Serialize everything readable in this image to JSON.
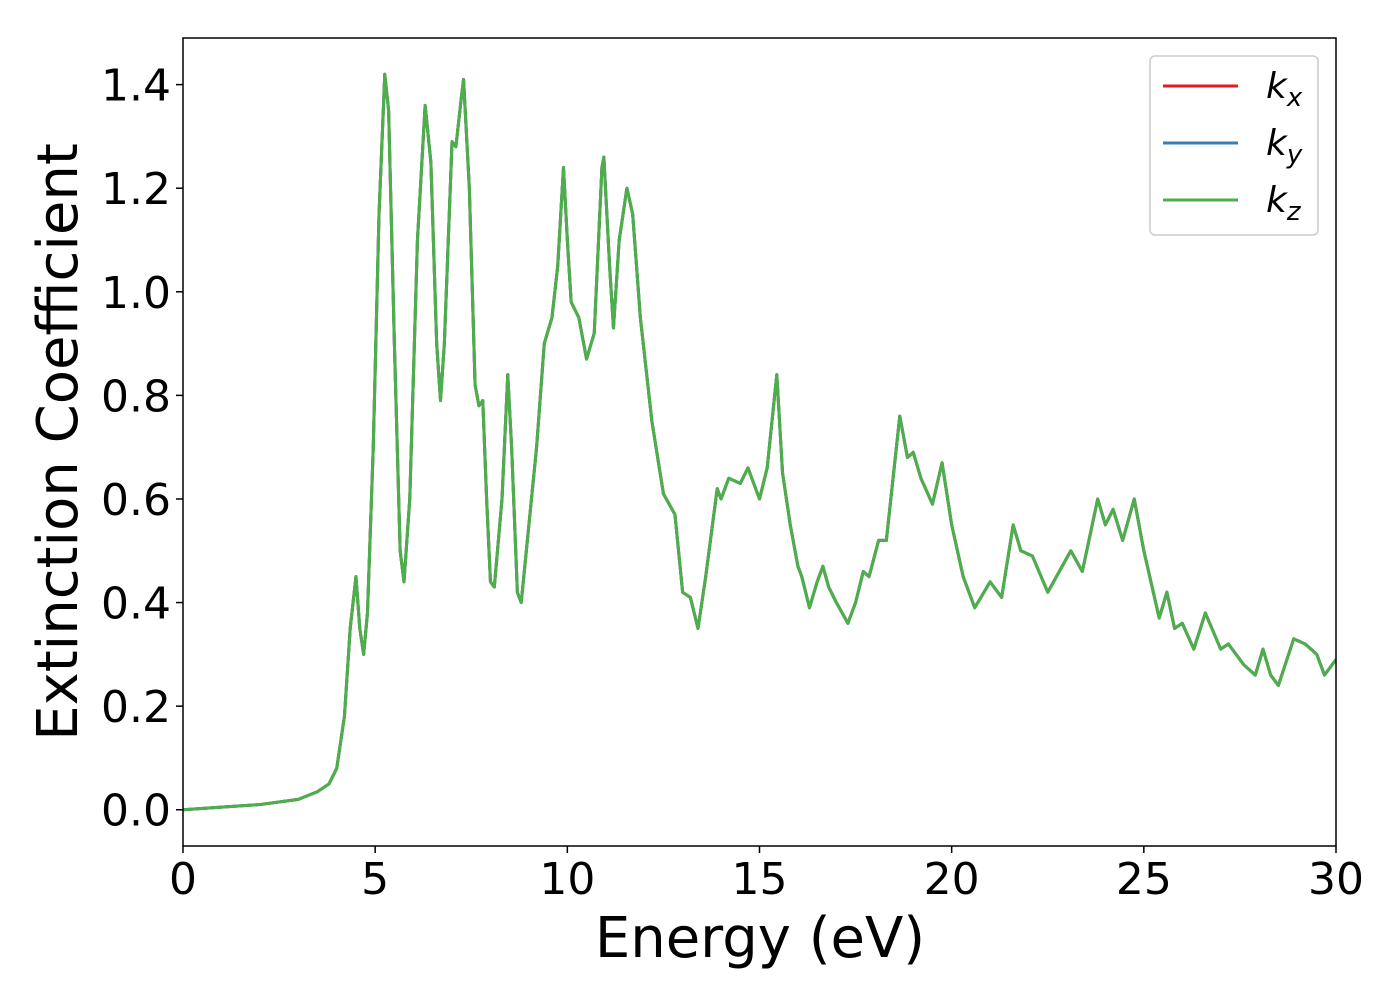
{
  "chart_data": {
    "type": "line",
    "xlabel": "Energy (eV)",
    "ylabel": "Extinction Coefficient",
    "x": [
      0,
      1,
      2,
      3,
      3.5,
      3.8,
      4.0,
      4.2,
      4.35,
      4.5,
      4.6,
      4.7,
      4.8,
      4.95,
      5.1,
      5.25,
      5.35,
      5.5,
      5.65,
      5.75,
      5.9,
      6.1,
      6.3,
      6.45,
      6.6,
      6.7,
      6.8,
      7.0,
      7.1,
      7.25,
      7.3,
      7.45,
      7.6,
      7.7,
      7.8,
      7.9,
      8.0,
      8.1,
      8.3,
      8.45,
      8.55,
      8.7,
      8.8,
      9.0,
      9.2,
      9.4,
      9.6,
      9.75,
      9.9,
      10.0,
      10.1,
      10.3,
      10.5,
      10.7,
      10.9,
      10.95,
      11.1,
      11.2,
      11.35,
      11.55,
      11.7,
      11.9,
      12.2,
      12.5,
      12.8,
      13.0,
      13.2,
      13.4,
      13.6,
      13.9,
      14.0,
      14.2,
      14.5,
      14.7,
      15.0,
      15.2,
      15.45,
      15.6,
      15.8,
      16.0,
      16.1,
      16.3,
      16.5,
      16.65,
      16.8,
      17.0,
      17.3,
      17.5,
      17.7,
      17.85,
      18.1,
      18.3,
      18.65,
      18.85,
      19.0,
      19.2,
      19.5,
      19.75,
      20.0,
      20.3,
      20.6,
      21.0,
      21.3,
      21.6,
      21.8,
      22.1,
      22.5,
      22.8,
      23.1,
      23.4,
      23.8,
      24.0,
      24.2,
      24.45,
      24.75,
      25.0,
      25.4,
      25.6,
      25.8,
      26.0,
      26.3,
      26.6,
      27.0,
      27.2,
      27.6,
      27.9,
      28.1,
      28.3,
      28.5,
      28.9,
      29.2,
      29.5,
      29.7,
      30.0
    ],
    "series": [
      {
        "name": "kx",
        "color": "#e41a1c",
        "values": [
          0,
          0.005,
          0.01,
          0.02,
          0.035,
          0.05,
          0.08,
          0.18,
          0.35,
          0.45,
          0.35,
          0.3,
          0.38,
          0.7,
          1.15,
          1.42,
          1.35,
          0.9,
          0.5,
          0.44,
          0.6,
          1.1,
          1.36,
          1.25,
          0.9,
          0.79,
          0.9,
          1.29,
          1.28,
          1.38,
          1.41,
          1.2,
          0.82,
          0.78,
          0.79,
          0.6,
          0.44,
          0.43,
          0.6,
          0.84,
          0.7,
          0.42,
          0.4,
          0.55,
          0.7,
          0.9,
          0.95,
          1.05,
          1.24,
          1.1,
          0.98,
          0.95,
          0.87,
          0.92,
          1.24,
          1.26,
          1.05,
          0.93,
          1.1,
          1.2,
          1.15,
          0.95,
          0.75,
          0.61,
          0.57,
          0.42,
          0.41,
          0.35,
          0.45,
          0.62,
          0.6,
          0.64,
          0.63,
          0.66,
          0.6,
          0.66,
          0.84,
          0.65,
          0.55,
          0.47,
          0.45,
          0.39,
          0.44,
          0.47,
          0.43,
          0.4,
          0.36,
          0.4,
          0.46,
          0.45,
          0.52,
          0.52,
          0.76,
          0.68,
          0.69,
          0.64,
          0.59,
          0.67,
          0.55,
          0.45,
          0.39,
          0.44,
          0.41,
          0.55,
          0.5,
          0.49,
          0.42,
          0.46,
          0.5,
          0.46,
          0.6,
          0.55,
          0.58,
          0.52,
          0.6,
          0.5,
          0.37,
          0.42,
          0.35,
          0.36,
          0.31,
          0.38,
          0.31,
          0.32,
          0.28,
          0.26,
          0.31,
          0.26,
          0.24,
          0.33,
          0.32,
          0.3,
          0.26,
          0.29
        ]
      },
      {
        "name": "ky",
        "color": "#377eb8",
        "values": [
          0,
          0.005,
          0.01,
          0.02,
          0.035,
          0.05,
          0.08,
          0.18,
          0.35,
          0.45,
          0.35,
          0.3,
          0.38,
          0.7,
          1.15,
          1.42,
          1.35,
          0.9,
          0.5,
          0.44,
          0.6,
          1.1,
          1.36,
          1.25,
          0.9,
          0.79,
          0.9,
          1.29,
          1.28,
          1.38,
          1.41,
          1.2,
          0.82,
          0.78,
          0.79,
          0.6,
          0.44,
          0.43,
          0.6,
          0.84,
          0.7,
          0.42,
          0.4,
          0.55,
          0.7,
          0.9,
          0.95,
          1.05,
          1.24,
          1.1,
          0.98,
          0.95,
          0.87,
          0.92,
          1.24,
          1.26,
          1.05,
          0.93,
          1.1,
          1.2,
          1.15,
          0.95,
          0.75,
          0.61,
          0.57,
          0.42,
          0.41,
          0.35,
          0.45,
          0.62,
          0.6,
          0.64,
          0.63,
          0.66,
          0.6,
          0.66,
          0.84,
          0.65,
          0.55,
          0.47,
          0.45,
          0.39,
          0.44,
          0.47,
          0.43,
          0.4,
          0.36,
          0.4,
          0.46,
          0.45,
          0.52,
          0.52,
          0.76,
          0.68,
          0.69,
          0.64,
          0.59,
          0.67,
          0.55,
          0.45,
          0.39,
          0.44,
          0.41,
          0.55,
          0.5,
          0.49,
          0.42,
          0.46,
          0.5,
          0.46,
          0.6,
          0.55,
          0.58,
          0.52,
          0.6,
          0.5,
          0.37,
          0.42,
          0.35,
          0.36,
          0.31,
          0.38,
          0.31,
          0.32,
          0.28,
          0.26,
          0.31,
          0.26,
          0.24,
          0.33,
          0.32,
          0.3,
          0.26,
          0.29
        ]
      },
      {
        "name": "kz",
        "color": "#4daf4a",
        "values": [
          0,
          0.005,
          0.01,
          0.02,
          0.035,
          0.05,
          0.08,
          0.18,
          0.35,
          0.45,
          0.35,
          0.3,
          0.38,
          0.7,
          1.15,
          1.42,
          1.35,
          0.9,
          0.5,
          0.44,
          0.6,
          1.1,
          1.36,
          1.25,
          0.9,
          0.79,
          0.9,
          1.29,
          1.28,
          1.38,
          1.41,
          1.2,
          0.82,
          0.78,
          0.79,
          0.6,
          0.44,
          0.43,
          0.6,
          0.84,
          0.7,
          0.42,
          0.4,
          0.55,
          0.7,
          0.9,
          0.95,
          1.05,
          1.24,
          1.1,
          0.98,
          0.95,
          0.87,
          0.92,
          1.24,
          1.26,
          1.05,
          0.93,
          1.1,
          1.2,
          1.15,
          0.95,
          0.75,
          0.61,
          0.57,
          0.42,
          0.41,
          0.35,
          0.45,
          0.62,
          0.6,
          0.64,
          0.63,
          0.66,
          0.6,
          0.66,
          0.84,
          0.65,
          0.55,
          0.47,
          0.45,
          0.39,
          0.44,
          0.47,
          0.43,
          0.4,
          0.36,
          0.4,
          0.46,
          0.45,
          0.52,
          0.52,
          0.76,
          0.68,
          0.69,
          0.64,
          0.59,
          0.67,
          0.55,
          0.45,
          0.39,
          0.44,
          0.41,
          0.55,
          0.5,
          0.49,
          0.42,
          0.46,
          0.5,
          0.46,
          0.6,
          0.55,
          0.58,
          0.52,
          0.6,
          0.5,
          0.37,
          0.42,
          0.35,
          0.36,
          0.31,
          0.38,
          0.31,
          0.32,
          0.28,
          0.26,
          0.31,
          0.26,
          0.24,
          0.33,
          0.32,
          0.3,
          0.26,
          0.29
        ]
      }
    ],
    "xlim": [
      0,
      30
    ],
    "xticks": [
      0,
      5,
      10,
      15,
      20,
      25,
      30
    ],
    "ylim": [
      -0.07,
      1.49
    ],
    "yticks": [
      {
        "value": 0,
        "label": "0.0"
      },
      {
        "value": 0.2,
        "label": "0.2"
      },
      {
        "value": 0.4,
        "label": "0.4"
      },
      {
        "value": 0.6,
        "label": "0.6"
      },
      {
        "value": 0.8,
        "label": "0.8"
      },
      {
        "value": 1,
        "label": "1.0"
      },
      {
        "value": 1.2,
        "label": "1.2"
      },
      {
        "value": 1.4,
        "label": "1.4"
      }
    ],
    "grid": false,
    "legend": "upper right"
  }
}
